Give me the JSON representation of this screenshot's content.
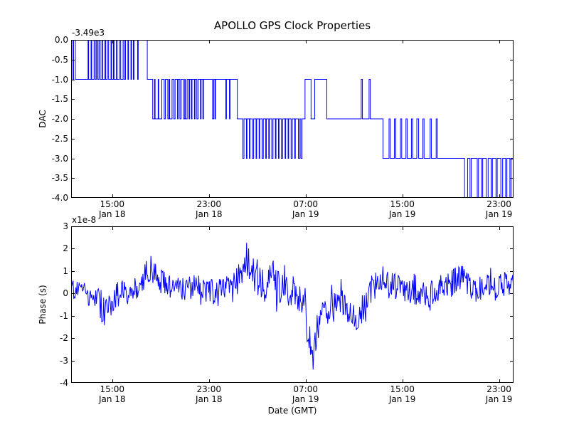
{
  "figure": {
    "title": "APOLLO GPS Clock Properties",
    "background_color": "#ffffff",
    "line_color": "#0000ff",
    "text_color": "#000000"
  },
  "chart_data": [
    {
      "id": "dac",
      "type": "line",
      "drawstyle": "steps-post",
      "series_name": "DAC",
      "ylabel": "DAC",
      "xlabel": "",
      "y_offset_label": "-3.49e3",
      "ylim": [
        -4.0,
        0.0
      ],
      "yticks": [
        0.0,
        -0.5,
        -1.0,
        -1.5,
        -2.0,
        -2.5,
        -3.0,
        -3.5,
        -4.0
      ],
      "ytick_labels": [
        "0.0",
        "-0.5",
        "-1.0",
        "-1.5",
        "-2.0",
        "-2.5",
        "-3.0",
        "-3.5",
        "-4.0"
      ],
      "xlim_hours": [
        11.6,
        48.2
      ],
      "xticks_hours": [
        15,
        23,
        31,
        39,
        47
      ],
      "xtick_labels": [
        [
          "15:00",
          "Jan 18"
        ],
        [
          "23:00",
          "Jan 18"
        ],
        [
          "07:00",
          "Jan 19"
        ],
        [
          "15:00",
          "Jan 19"
        ],
        [
          "23:00",
          "Jan 19"
        ]
      ],
      "grid": false,
      "legend": null,
      "steps": [
        [
          11.6,
          0
        ],
        [
          11.75,
          -1
        ],
        [
          11.8,
          0
        ],
        [
          11.95,
          -1
        ],
        [
          13.0,
          0
        ],
        [
          13.05,
          -1
        ],
        [
          13.25,
          0
        ],
        [
          13.3,
          -1
        ],
        [
          13.5,
          0
        ],
        [
          13.6,
          -1
        ],
        [
          13.7,
          0
        ],
        [
          13.8,
          -1
        ],
        [
          13.9,
          0
        ],
        [
          14.0,
          -1
        ],
        [
          14.15,
          0
        ],
        [
          14.2,
          -1
        ],
        [
          14.4,
          0
        ],
        [
          14.45,
          -1
        ],
        [
          14.6,
          0
        ],
        [
          14.7,
          -1
        ],
        [
          14.9,
          0
        ],
        [
          14.95,
          -1
        ],
        [
          15.1,
          0
        ],
        [
          15.15,
          -1
        ],
        [
          15.35,
          0
        ],
        [
          15.4,
          -1
        ],
        [
          15.6,
          0
        ],
        [
          15.7,
          -1
        ],
        [
          15.9,
          0
        ],
        [
          16.0,
          -1
        ],
        [
          16.1,
          0
        ],
        [
          16.3,
          -1
        ],
        [
          16.35,
          0
        ],
        [
          16.55,
          -1
        ],
        [
          16.6,
          0
        ],
        [
          16.75,
          -1
        ],
        [
          16.8,
          0
        ],
        [
          17.1,
          -1
        ],
        [
          17.15,
          0
        ],
        [
          17.9,
          -1
        ],
        [
          18.35,
          -2
        ],
        [
          18.5,
          -1
        ],
        [
          18.55,
          -2
        ],
        [
          18.8,
          -1
        ],
        [
          18.85,
          -2
        ],
        [
          19.1,
          -1
        ],
        [
          19.3,
          -2
        ],
        [
          19.4,
          -1
        ],
        [
          19.6,
          -2
        ],
        [
          19.7,
          -1
        ],
        [
          19.75,
          -2
        ],
        [
          19.95,
          -1
        ],
        [
          20.1,
          -2
        ],
        [
          20.2,
          -1
        ],
        [
          20.4,
          -2
        ],
        [
          20.45,
          -1
        ],
        [
          20.6,
          -2
        ],
        [
          20.7,
          -1
        ],
        [
          20.9,
          -2
        ],
        [
          21.0,
          -1
        ],
        [
          21.05,
          -2
        ],
        [
          21.2,
          -1
        ],
        [
          21.35,
          -2
        ],
        [
          21.4,
          -1
        ],
        [
          21.55,
          -2
        ],
        [
          21.6,
          -1
        ],
        [
          21.8,
          -2
        ],
        [
          21.85,
          -1
        ],
        [
          22.0,
          -2
        ],
        [
          22.1,
          -1
        ],
        [
          22.3,
          -2
        ],
        [
          22.35,
          -1
        ],
        [
          22.5,
          -2
        ],
        [
          22.55,
          -1
        ],
        [
          23.3,
          -2
        ],
        [
          23.4,
          -1
        ],
        [
          23.5,
          -2
        ],
        [
          23.55,
          -1
        ],
        [
          24.4,
          -2
        ],
        [
          24.45,
          -1
        ],
        [
          24.7,
          -2
        ],
        [
          24.75,
          -1
        ],
        [
          25.35,
          -2
        ],
        [
          25.8,
          -3
        ],
        [
          25.9,
          -2
        ],
        [
          26.1,
          -3
        ],
        [
          26.15,
          -2
        ],
        [
          26.35,
          -3
        ],
        [
          26.4,
          -2
        ],
        [
          26.6,
          -3
        ],
        [
          26.7,
          -2
        ],
        [
          26.9,
          -3
        ],
        [
          26.95,
          -2
        ],
        [
          27.15,
          -3
        ],
        [
          27.2,
          -2
        ],
        [
          27.4,
          -3
        ],
        [
          27.5,
          -2
        ],
        [
          27.7,
          -3
        ],
        [
          27.75,
          -2
        ],
        [
          27.95,
          -3
        ],
        [
          28.0,
          -2
        ],
        [
          28.2,
          -3
        ],
        [
          28.3,
          -2
        ],
        [
          28.5,
          -3
        ],
        [
          28.55,
          -2
        ],
        [
          28.75,
          -3
        ],
        [
          28.8,
          -2
        ],
        [
          29.0,
          -3
        ],
        [
          29.1,
          -2
        ],
        [
          29.3,
          -3
        ],
        [
          29.35,
          -2
        ],
        [
          29.55,
          -3
        ],
        [
          29.6,
          -2
        ],
        [
          29.8,
          -3
        ],
        [
          29.9,
          -2
        ],
        [
          30.1,
          -3
        ],
        [
          30.15,
          -2
        ],
        [
          30.4,
          -3
        ],
        [
          30.5,
          -2
        ],
        [
          30.6,
          -3
        ],
        [
          30.7,
          -2
        ],
        [
          30.95,
          -1
        ],
        [
          31.45,
          -2
        ],
        [
          31.75,
          -1
        ],
        [
          32.75,
          -2
        ],
        [
          35.6,
          -1
        ],
        [
          35.7,
          -2
        ],
        [
          36.25,
          -1
        ],
        [
          36.35,
          -2
        ],
        [
          37.4,
          -3
        ],
        [
          37.9,
          -2
        ],
        [
          38.0,
          -3
        ],
        [
          38.35,
          -2
        ],
        [
          38.45,
          -3
        ],
        [
          38.85,
          -2
        ],
        [
          38.95,
          -3
        ],
        [
          39.3,
          -2
        ],
        [
          39.4,
          -3
        ],
        [
          39.75,
          -2
        ],
        [
          39.85,
          -3
        ],
        [
          40.2,
          -2
        ],
        [
          40.35,
          -3
        ],
        [
          40.7,
          -2
        ],
        [
          40.8,
          -3
        ],
        [
          41.3,
          -2
        ],
        [
          41.4,
          -3
        ],
        [
          41.8,
          -2
        ],
        [
          41.9,
          -3
        ],
        [
          44.15,
          -4
        ],
        [
          44.4,
          -3
        ],
        [
          44.6,
          -4
        ],
        [
          44.7,
          -3
        ],
        [
          45.2,
          -4
        ],
        [
          45.3,
          -3
        ],
        [
          45.55,
          -4
        ],
        [
          45.65,
          -3
        ],
        [
          45.95,
          -4
        ],
        [
          46.1,
          -3
        ],
        [
          46.35,
          -4
        ],
        [
          46.45,
          -3
        ],
        [
          46.75,
          -4
        ],
        [
          46.85,
          -3
        ],
        [
          47.15,
          -4
        ],
        [
          47.3,
          -3
        ],
        [
          47.55,
          -4
        ],
        [
          47.65,
          -3
        ],
        [
          47.9,
          -4
        ],
        [
          48.0,
          -3
        ]
      ]
    },
    {
      "id": "phase",
      "type": "line",
      "drawstyle": "default",
      "series_name": "Phase",
      "ylabel": "Phase (s)",
      "xlabel": "Date (GMT)",
      "y_offset_label": "x1e-8",
      "y_unit_scale": 1e-08,
      "ylim": [
        -4,
        3
      ],
      "yticks": [
        3,
        2,
        1,
        0,
        -1,
        -2,
        -3,
        -4
      ],
      "ytick_labels": [
        "3",
        "2",
        "1",
        "0",
        "-1",
        "-2",
        "-3",
        "-4"
      ],
      "xlim_hours": [
        11.6,
        48.2
      ],
      "xticks_hours": [
        15,
        23,
        31,
        39,
        47
      ],
      "xtick_labels": [
        [
          "15:00",
          "Jan 18"
        ],
        [
          "23:00",
          "Jan 18"
        ],
        [
          "07:00",
          "Jan 19"
        ],
        [
          "15:00",
          "Jan 19"
        ],
        [
          "23:00",
          "Jan 19"
        ]
      ],
      "grid": false,
      "legend": null,
      "trend_anchors": [
        [
          11.6,
          0.2,
          0.5
        ],
        [
          12.5,
          0.1,
          0.5
        ],
        [
          13.5,
          -0.1,
          0.6
        ],
        [
          14.3,
          -0.6,
          0.9
        ],
        [
          15.0,
          -0.2,
          0.7
        ],
        [
          16.0,
          0.1,
          0.5
        ],
        [
          17.0,
          0.2,
          0.5
        ],
        [
          17.8,
          0.9,
          0.6
        ],
        [
          18.3,
          1.0,
          0.5
        ],
        [
          19.0,
          0.5,
          0.6
        ],
        [
          20.0,
          0.2,
          0.5
        ],
        [
          21.0,
          0.2,
          0.5
        ],
        [
          22.0,
          0.3,
          0.6
        ],
        [
          23.0,
          0.1,
          0.6
        ],
        [
          24.0,
          0.0,
          0.7
        ],
        [
          25.0,
          0.3,
          0.7
        ],
        [
          25.8,
          1.0,
          0.8
        ],
        [
          26.2,
          1.5,
          0.9
        ],
        [
          26.8,
          0.8,
          0.8
        ],
        [
          27.5,
          0.4,
          0.9
        ],
        [
          28.3,
          0.6,
          0.9
        ],
        [
          29.0,
          0.2,
          0.8
        ],
        [
          30.0,
          0.1,
          0.7
        ],
        [
          30.8,
          -0.5,
          0.7
        ],
        [
          31.3,
          -1.8,
          0.9
        ],
        [
          31.6,
          -2.8,
          0.7
        ],
        [
          32.0,
          -1.5,
          0.7
        ],
        [
          32.7,
          -0.6,
          0.6
        ],
        [
          33.5,
          -0.3,
          0.7
        ],
        [
          34.3,
          -0.6,
          0.7
        ],
        [
          35.2,
          -1.1,
          0.7
        ],
        [
          35.8,
          -0.6,
          0.6
        ],
        [
          36.6,
          0.3,
          0.7
        ],
        [
          37.3,
          0.7,
          0.7
        ],
        [
          38.2,
          0.4,
          0.6
        ],
        [
          39.0,
          0.1,
          0.6
        ],
        [
          40.0,
          0.2,
          0.7
        ],
        [
          41.0,
          -0.1,
          0.6
        ],
        [
          42.0,
          0.2,
          0.6
        ],
        [
          43.0,
          0.5,
          0.7
        ],
        [
          43.8,
          0.7,
          0.7
        ],
        [
          44.8,
          0.1,
          0.6
        ],
        [
          45.8,
          0.3,
          0.6
        ],
        [
          46.8,
          0.2,
          0.6
        ],
        [
          47.6,
          0.5,
          0.6
        ],
        [
          48.2,
          0.3,
          0.5
        ]
      ],
      "noise": {
        "seed": 20190118,
        "dt_hours": 0.055,
        "spike_prob": 0.04,
        "spike_scale": 1.6
      }
    }
  ]
}
